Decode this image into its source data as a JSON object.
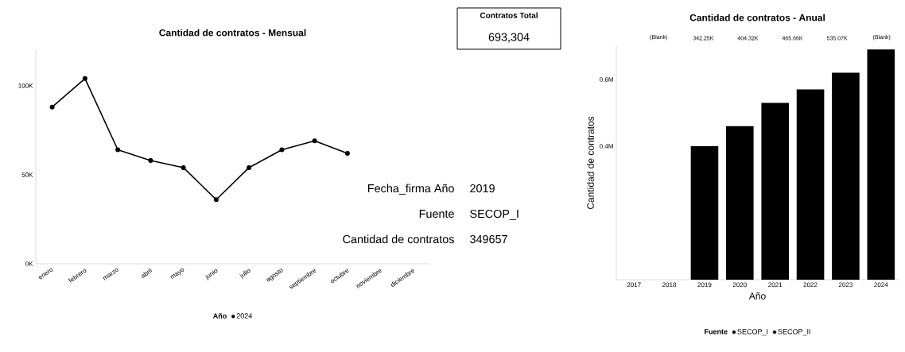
{
  "chart_data": [
    {
      "type": "line",
      "title": "Cantidad de contratos - Mensual",
      "categories": [
        "enero",
        "febrero",
        "marzo",
        "abril",
        "mayo",
        "junio",
        "julio",
        "agosto",
        "septiembre",
        "octubre",
        "noviembre",
        "diciembre"
      ],
      "series": [
        {
          "name": "2024",
          "color": "#000000",
          "values": [
            88000,
            104000,
            64000,
            58000,
            54000,
            36000,
            54000,
            64000,
            69000,
            62000,
            null,
            null
          ]
        }
      ],
      "ylim": [
        0,
        120000
      ],
      "yticks": [
        {
          "value": 0,
          "label": "0K"
        },
        {
          "value": 50000,
          "label": "50K"
        },
        {
          "value": 100000,
          "label": "100K"
        }
      ],
      "legend_title": "Año",
      "legend": "bottom",
      "marker": "circle"
    },
    {
      "type": "other",
      "title": "Contratos Total",
      "annotations": [
        "693,304"
      ]
    },
    {
      "type": "bar",
      "title": "Cantidad de contratos - Anual",
      "categories": [
        "2017",
        "2018",
        "2019",
        "2020",
        "2021",
        "2022",
        "2023",
        "2024"
      ],
      "ylabel": "Cantidad de contratos",
      "xlabel": "Año",
      "legend_title": "Fuente",
      "legend": "bottom",
      "stacked": true,
      "series": [
        {
          "name": "SECOP_I",
          "color": "#000000",
          "values": [
            null,
            null,
            0.35,
            null,
            null,
            null,
            null,
            null
          ]
        },
        {
          "name": "SECOP_II",
          "color": "#000000",
          "values": [
            null,
            null,
            0.05,
            0.46,
            0.53,
            0.57,
            0.62,
            0.69
          ]
        }
      ],
      "ylim": [
        0,
        0.7
      ],
      "yticks": [
        {
          "value": 0.4,
          "label": "0.4M"
        },
        {
          "value": 0.6,
          "label": "0.6M"
        }
      ],
      "annotations": [
        "(Blank)",
        "342.25K",
        "404.32K",
        "465.66K",
        "535.07K",
        "(Blank)"
      ]
    },
    {
      "type": "other",
      "annotations": [
        "Fecha_firma Año",
        "2019",
        "Fuente",
        "SECOP_I",
        "Cantidad de contratos",
        "349657"
      ]
    }
  ]
}
